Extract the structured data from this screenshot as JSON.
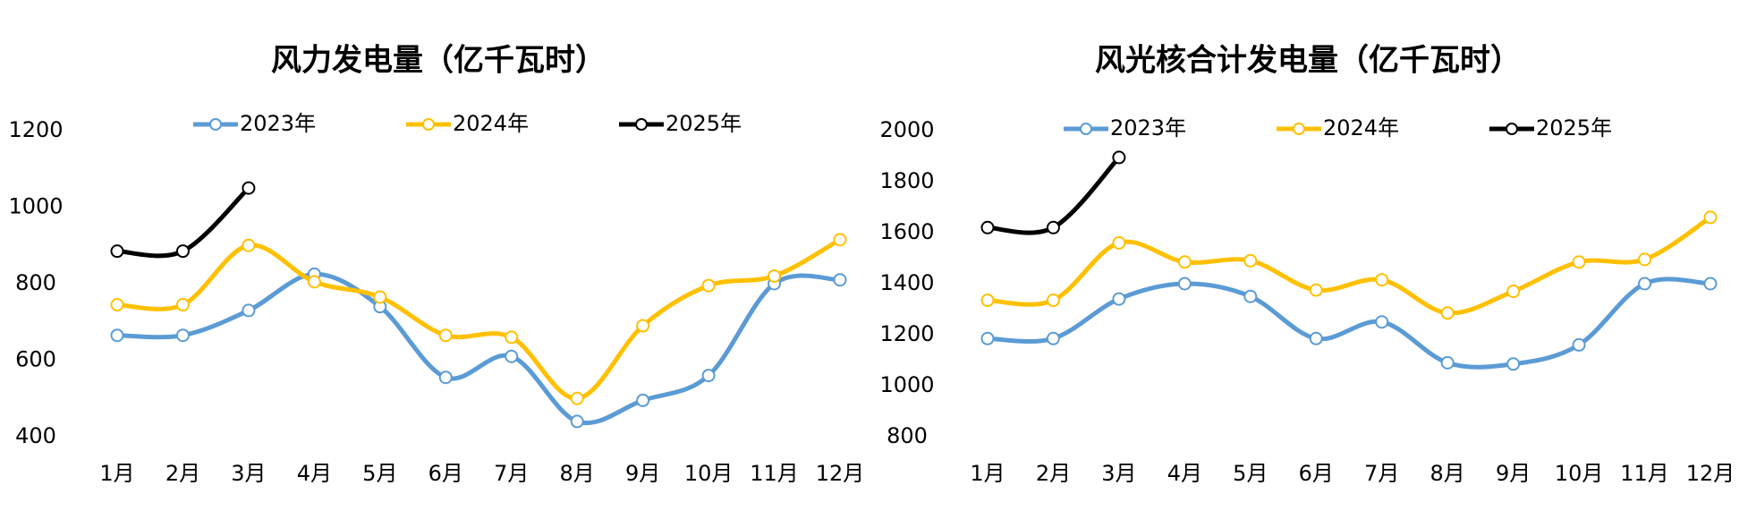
{
  "chart_data": [
    {
      "type": "line",
      "title": "风力发电量（亿千瓦时）",
      "categories": [
        "1月",
        "2月",
        "3月",
        "4月",
        "5月",
        "6月",
        "7月",
        "8月",
        "9月",
        "10月",
        "11月",
        "12月"
      ],
      "ylim": [
        400,
        1200
      ],
      "yticks": [
        400,
        600,
        800,
        1000,
        1200
      ],
      "grid": false,
      "legend": "top",
      "series": [
        {
          "name": "2023年",
          "color": "#5b9bd5",
          "values": [
            665,
            665,
            730,
            825,
            740,
            555,
            610,
            440,
            495,
            560,
            800,
            810
          ]
        },
        {
          "name": "2024年",
          "color": "#ffc000",
          "values": [
            745,
            745,
            900,
            805,
            765,
            665,
            660,
            500,
            690,
            795,
            820,
            915
          ]
        },
        {
          "name": "2025年",
          "color": "#000000",
          "values": [
            885,
            885,
            1050,
            null,
            null,
            null,
            null,
            null,
            null,
            null,
            null,
            null
          ]
        }
      ]
    },
    {
      "type": "line",
      "title": "风光核合计发电量（亿千瓦时）",
      "categories": [
        "1月",
        "2月",
        "3月",
        "4月",
        "5月",
        "6月",
        "7月",
        "8月",
        "9月",
        "10月",
        "11月",
        "12月"
      ],
      "ylim": [
        800,
        2000
      ],
      "yticks": [
        800,
        1000,
        1200,
        1400,
        1600,
        1800,
        2000
      ],
      "grid": false,
      "legend": "top",
      "series": [
        {
          "name": "2023年",
          "color": "#5b9bd5",
          "values": [
            1185,
            1185,
            1340,
            1400,
            1350,
            1185,
            1250,
            1090,
            1085,
            1160,
            1400,
            1400
          ]
        },
        {
          "name": "2024年",
          "color": "#ffc000",
          "values": [
            1335,
            1335,
            1560,
            1485,
            1490,
            1375,
            1415,
            1285,
            1370,
            1485,
            1495,
            1660
          ]
        },
        {
          "name": "2025年",
          "color": "#000000",
          "values": [
            1620,
            1620,
            1895,
            null,
            null,
            null,
            null,
            null,
            null,
            null,
            null,
            null
          ]
        }
      ]
    }
  ]
}
